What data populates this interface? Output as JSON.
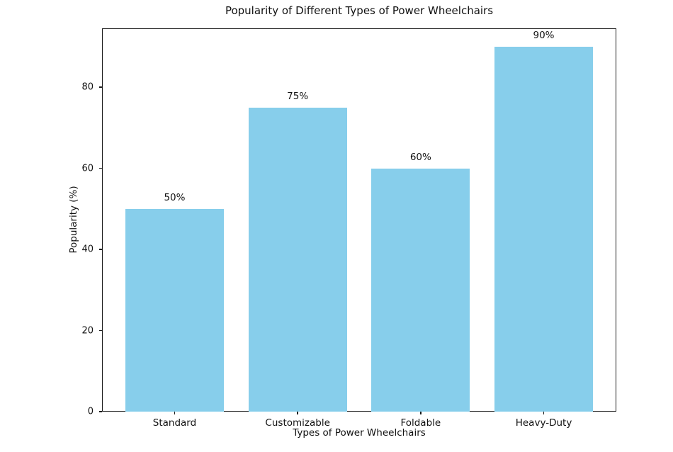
{
  "chart_data": {
    "type": "bar",
    "title": "Popularity of Different Types of Power Wheelchairs",
    "xlabel": "Types of Power Wheelchairs",
    "ylabel": "Popularity (%)",
    "categories": [
      "Standard",
      "Customizable",
      "Foldable",
      "Heavy-Duty"
    ],
    "values": [
      50,
      75,
      60,
      90
    ],
    "bar_labels": [
      "50%",
      "75%",
      "60%",
      "90%"
    ],
    "yticks": [
      0,
      20,
      40,
      60,
      80
    ],
    "ylim": [
      0,
      94.5
    ],
    "bar_color": "#87CEEB",
    "axis_color": "#1a1a1a",
    "grid": false,
    "legend": null
  }
}
